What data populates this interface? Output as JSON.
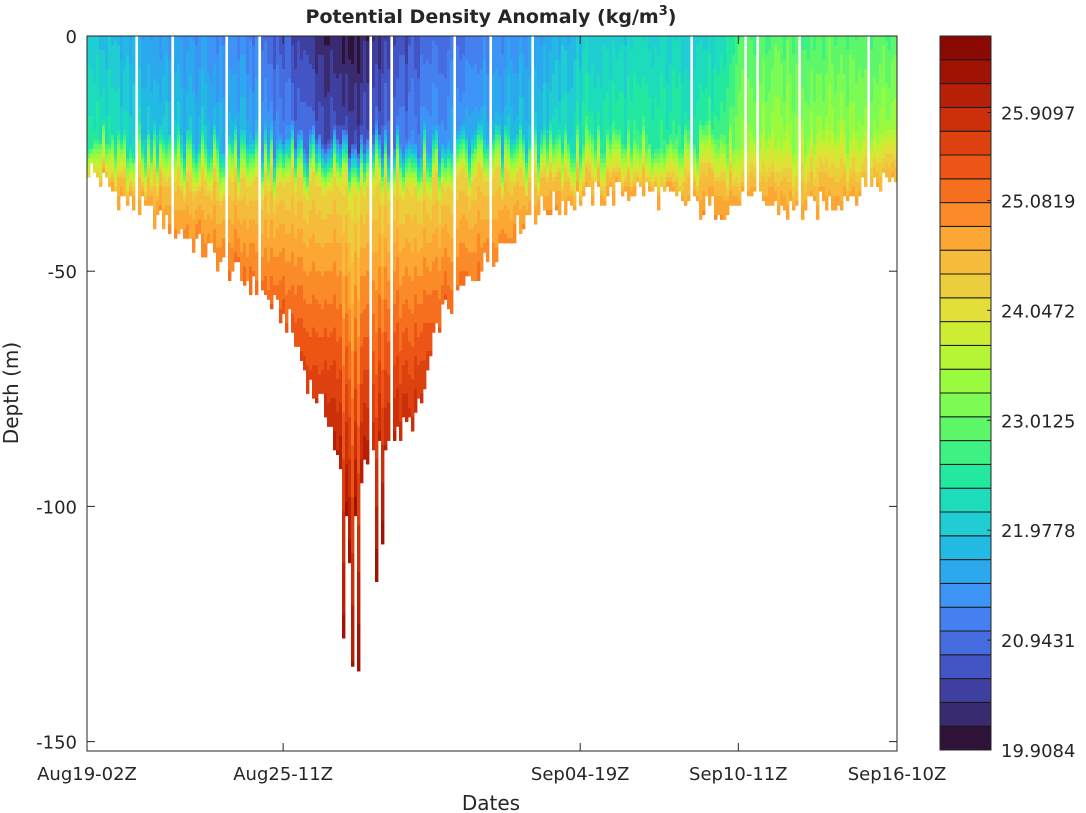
{
  "chart_data": {
    "type": "heatmap",
    "title": "Potential Density Anomaly (kg/m",
    "title_sup": "3",
    "title_close": ")",
    "xlabel": "Dates",
    "ylabel": "Depth  (m)",
    "xlim_days": [
      0,
      28.33
    ],
    "ylim": [
      -152,
      0
    ],
    "xticks": [
      {
        "label": "Aug19-02Z",
        "day": 0
      },
      {
        "label": "Aug25-11Z",
        "day": 6.86
      },
      {
        "label": "Sep04-19Z",
        "day": 17.25
      },
      {
        "label": "Sep10-11Z",
        "day": 22.78
      },
      {
        "label": "Sep16-10Z",
        "day": 28.33
      }
    ],
    "yticks": [
      0,
      -50,
      -100,
      -150
    ],
    "clim": [
      19.9084,
      26.63
    ],
    "colorbar_ticks": [
      "19.9084",
      "20.9431",
      "21.9778",
      "23.0125",
      "24.0472",
      "25.0819",
      "25.9097"
    ],
    "colorbar_tick_values": [
      19.9084,
      20.9431,
      21.9778,
      23.0125,
      24.0472,
      25.0819,
      25.9097
    ],
    "colormap": [
      "#2f1238",
      "#3a2a70",
      "#3e3f9e",
      "#4355c4",
      "#466ddf",
      "#4580f0",
      "#3c95f6",
      "#2ca8ee",
      "#22b9e2",
      "#1fcdd3",
      "#1ddcbb",
      "#22e8a0",
      "#3ef183",
      "#5ef76a",
      "#7cfb54",
      "#9afa3e",
      "#b5f535",
      "#cded33",
      "#e1df38",
      "#eccd3b",
      "#f6bb3a",
      "#fca633",
      "#fb8b28",
      "#f66f1e",
      "#ec5516",
      "#de4110",
      "#cc300b",
      "#b72007",
      "#a01304",
      "#8a0903"
    ],
    "max_depth_profile": {
      "day": [
        0,
        1.15,
        3.25,
        5.0,
        6.05,
        7.1,
        7.8,
        8.5,
        9.03,
        9.2,
        9.55,
        10.25,
        10.95,
        11.65,
        12.35,
        13.4,
        14.45,
        15.5,
        17.25,
        19.35,
        21.45,
        23.55,
        24.95,
        26.7,
        28.33
      ],
      "depth": [
        -28,
        -35,
        -42,
        -50,
        -55,
        -62,
        -75,
        -82,
        -100,
        -112,
        -95,
        -88,
        -85,
        -80,
        -60,
        -52,
        -45,
        -38,
        -35,
        -33,
        -37,
        -36,
        -38,
        -34,
        -30
      ]
    },
    "surface_density": {
      "day": [
        0,
        2.2,
        5.6,
        8.0,
        9.0,
        10.5,
        12.1,
        16.3,
        17.5,
        22.3,
        22.8,
        28.33
      ],
      "value": [
        22.0,
        21.5,
        21.2,
        20.3,
        20.0,
        20.4,
        20.9,
        21.6,
        22.0,
        22.1,
        22.8,
        22.9
      ]
    }
  }
}
